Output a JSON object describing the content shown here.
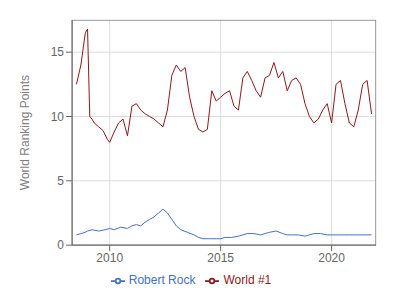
{
  "chart_data": {
    "type": "line",
    "ylabel": "World Ranking Points",
    "xlim": [
      2008.3,
      2022.0
    ],
    "xticks": [
      2010,
      2015,
      2020
    ],
    "ylim": [
      0,
      17.5
    ],
    "yticks": [
      0,
      5,
      10,
      15
    ],
    "grid": true,
    "legend": "bottom",
    "series": [
      {
        "name": "World #1",
        "color": "#8b1a1a",
        "x": [
          2008.5,
          2008.7,
          2008.9,
          2009.0,
          2009.1,
          2009.2,
          2009.3,
          2009.5,
          2009.7,
          2009.9,
          2010.0,
          2010.2,
          2010.4,
          2010.6,
          2010.8,
          2011.0,
          2011.2,
          2011.4,
          2011.6,
          2011.8,
          2012.0,
          2012.2,
          2012.4,
          2012.6,
          2012.8,
          2013.0,
          2013.2,
          2013.4,
          2013.6,
          2013.8,
          2014.0,
          2014.2,
          2014.4,
          2014.6,
          2014.8,
          2015.0,
          2015.2,
          2015.4,
          2015.6,
          2015.8,
          2016.0,
          2016.2,
          2016.4,
          2016.6,
          2016.8,
          2017.0,
          2017.2,
          2017.4,
          2017.6,
          2017.8,
          2018.0,
          2018.2,
          2018.4,
          2018.6,
          2018.8,
          2019.0,
          2019.2,
          2019.4,
          2019.6,
          2019.8,
          2020.0,
          2020.2,
          2020.4,
          2020.6,
          2020.8,
          2021.0,
          2021.2,
          2021.4,
          2021.6,
          2021.8
        ],
        "values": [
          12.5,
          14.0,
          16.5,
          16.8,
          10.0,
          9.8,
          9.5,
          9.2,
          8.9,
          8.2,
          8.0,
          8.8,
          9.5,
          9.8,
          8.5,
          10.8,
          11.0,
          10.5,
          10.2,
          10.0,
          9.8,
          9.5,
          9.2,
          10.5,
          13.2,
          14.0,
          13.5,
          13.8,
          11.5,
          10.0,
          9.0,
          8.8,
          9.0,
          12.0,
          11.2,
          11.5,
          11.8,
          12.0,
          10.8,
          10.5,
          13.0,
          13.5,
          12.8,
          12.0,
          11.5,
          13.0,
          13.2,
          14.2,
          13.0,
          13.5,
          12.0,
          12.8,
          13.0,
          12.5,
          11.0,
          10.0,
          9.5,
          9.8,
          10.5,
          11.0,
          9.5,
          12.5,
          12.8,
          11.0,
          9.5,
          9.2,
          10.5,
          12.5,
          12.8,
          10.2
        ]
      },
      {
        "name": "Robert Rock",
        "color": "#4472c4",
        "x": [
          2008.5,
          2008.7,
          2008.9,
          2009.0,
          2009.2,
          2009.5,
          2009.8,
          2010.0,
          2010.2,
          2010.5,
          2010.8,
          2011.0,
          2011.2,
          2011.4,
          2011.6,
          2011.8,
          2012.0,
          2012.2,
          2012.4,
          2012.6,
          2012.8,
          2013.0,
          2013.2,
          2013.5,
          2013.8,
          2014.0,
          2014.2,
          2014.5,
          2014.8,
          2015.0,
          2015.2,
          2015.5,
          2015.8,
          2016.0,
          2016.2,
          2016.5,
          2016.8,
          2017.0,
          2017.2,
          2017.5,
          2017.8,
          2018.0,
          2018.2,
          2018.5,
          2018.8,
          2019.0,
          2019.2,
          2019.5,
          2019.8,
          2020.0,
          2020.2,
          2020.5,
          2020.8,
          2021.0,
          2021.2,
          2021.5,
          2021.8
        ],
        "values": [
          0.8,
          0.9,
          1.0,
          1.1,
          1.2,
          1.1,
          1.2,
          1.3,
          1.2,
          1.4,
          1.3,
          1.5,
          1.6,
          1.5,
          1.8,
          2.0,
          2.2,
          2.5,
          2.8,
          2.5,
          2.0,
          1.5,
          1.2,
          1.0,
          0.8,
          0.6,
          0.5,
          0.5,
          0.5,
          0.5,
          0.6,
          0.6,
          0.7,
          0.8,
          0.9,
          0.9,
          0.8,
          0.9,
          1.0,
          1.1,
          0.9,
          0.8,
          0.8,
          0.8,
          0.7,
          0.8,
          0.9,
          0.9,
          0.8,
          0.8,
          0.8,
          0.8,
          0.8,
          0.8,
          0.8,
          0.8,
          0.8
        ]
      }
    ]
  }
}
